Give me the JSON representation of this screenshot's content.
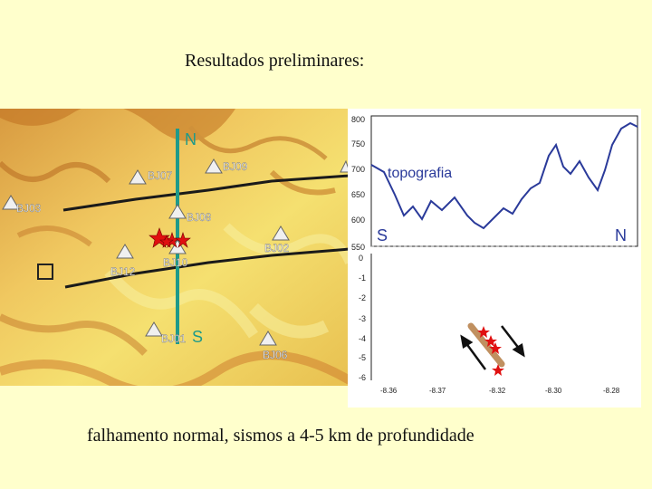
{
  "title": "Resultados preliminares:",
  "caption": "falhamento normal, sismos a 4-5 km de profundidade",
  "map": {
    "stations": [
      {
        "id": "BJ07",
        "label": "BJ07"
      },
      {
        "id": "BJ09",
        "label": "BJ09"
      },
      {
        "id": "BJ03",
        "label": "BJ03"
      },
      {
        "id": "BJ08",
        "label": "BJ08"
      },
      {
        "id": "BJ02",
        "label": "BJ02"
      },
      {
        "id": "BJ12",
        "label": "BJ12"
      },
      {
        "id": "BJ10",
        "label": "BJ10"
      },
      {
        "id": "BJ01",
        "label": "BJ01"
      },
      {
        "id": "BJ06",
        "label": "BJ06"
      }
    ],
    "profile_north_label": "N",
    "profile_south_label": "S",
    "colors": {
      "profile_line": "#1e9a8a",
      "fault": "#1a1a1a",
      "epicenter": "#e01010",
      "terrain_light": "#f5e070",
      "terrain_dark": "#d08030"
    }
  },
  "profile": {
    "topo_label": "topografia",
    "south_label": "S",
    "north_label": "N",
    "y_ticks_topo": [
      "800",
      "750",
      "700",
      "650",
      "600",
      "550"
    ],
    "y_ticks_depth": [
      "0",
      "-1",
      "-2",
      "-3",
      "-4",
      "-5",
      "-6"
    ],
    "x_ticks": [
      "-8.36",
      "-8.37",
      "-8.32",
      "-8.30",
      "-8.28"
    ],
    "colors": {
      "fault_band": "#c09060",
      "hypocenter": "#e01010"
    }
  }
}
